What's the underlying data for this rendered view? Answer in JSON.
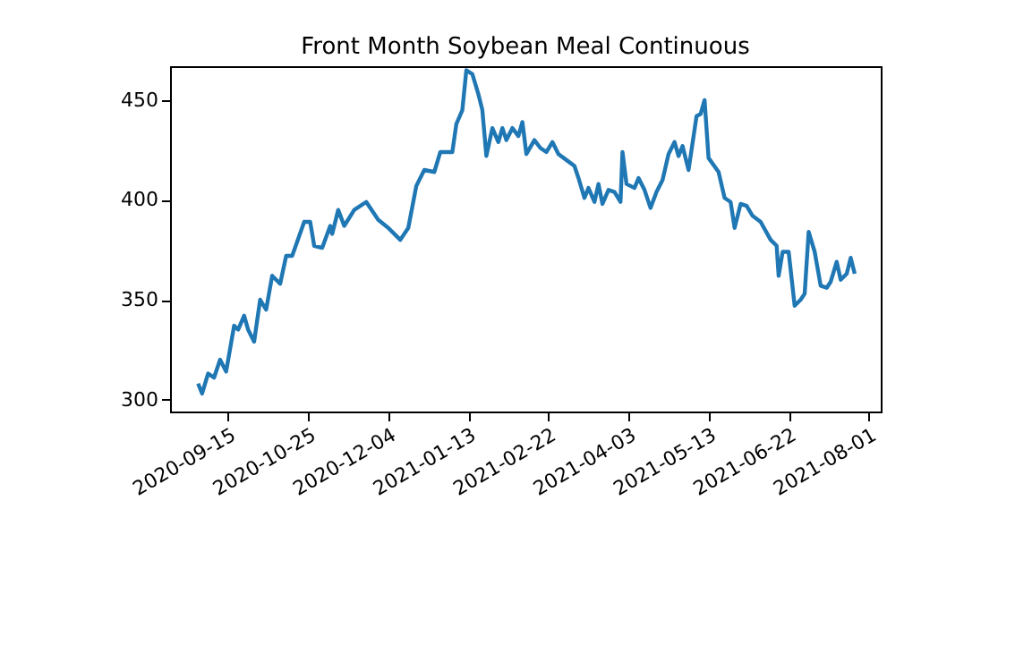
{
  "chart_data": {
    "type": "line",
    "title": "Front Month Soybean Meal Continuous",
    "x": [
      "2020-08-31",
      "2020-09-02",
      "2020-09-05",
      "2020-09-08",
      "2020-09-11",
      "2020-09-14",
      "2020-09-18",
      "2020-09-20",
      "2020-09-23",
      "2020-09-25",
      "2020-09-28",
      "2020-10-01",
      "2020-10-04",
      "2020-10-07",
      "2020-10-11",
      "2020-10-14",
      "2020-10-17",
      "2020-10-23",
      "2020-10-26",
      "2020-10-28",
      "2020-11-01",
      "2020-11-05",
      "2020-11-06",
      "2020-11-09",
      "2020-11-12",
      "2020-11-17",
      "2020-11-23",
      "2020-11-29",
      "2020-12-04",
      "2020-12-10",
      "2020-12-14",
      "2020-12-18",
      "2020-12-22",
      "2020-12-27",
      "2020-12-30",
      "2021-01-05",
      "2021-01-07",
      "2021-01-10",
      "2021-01-12",
      "2021-01-15",
      "2021-01-18",
      "2021-01-20",
      "2021-01-22",
      "2021-01-25",
      "2021-01-28",
      "2021-01-30",
      "2021-02-01",
      "2021-02-04",
      "2021-02-07",
      "2021-02-09",
      "2021-02-11",
      "2021-02-15",
      "2021-02-18",
      "2021-02-21",
      "2021-02-24",
      "2021-02-27",
      "2021-03-03",
      "2021-03-07",
      "2021-03-09",
      "2021-03-12",
      "2021-03-14",
      "2021-03-17",
      "2021-03-19",
      "2021-03-21",
      "2021-03-24",
      "2021-03-27",
      "2021-03-30",
      "2021-03-31",
      "2021-04-02",
      "2021-04-06",
      "2021-04-08",
      "2021-04-11",
      "2021-04-14",
      "2021-04-17",
      "2021-04-20",
      "2021-04-23",
      "2021-04-26",
      "2021-04-28",
      "2021-04-30",
      "2021-05-03",
      "2021-05-07",
      "2021-05-09",
      "2021-05-11",
      "2021-05-13",
      "2021-05-18",
      "2021-05-21",
      "2021-05-24",
      "2021-05-26",
      "2021-05-29",
      "2021-06-01",
      "2021-06-04",
      "2021-06-08",
      "2021-06-13",
      "2021-06-16",
      "2021-06-17",
      "2021-06-19",
      "2021-06-22",
      "2021-06-25",
      "2021-06-28",
      "2021-06-30",
      "2021-07-02",
      "2021-07-05",
      "2021-07-08",
      "2021-07-11",
      "2021-07-13",
      "2021-07-16",
      "2021-07-18",
      "2021-07-21",
      "2021-07-23",
      "2021-07-25"
    ],
    "series": [
      {
        "color": "#1f77b4",
        "values": [
          308,
          303,
          313,
          311,
          320,
          314,
          337,
          335,
          342,
          335,
          329,
          350,
          345,
          362,
          358,
          372,
          372,
          389,
          389,
          377,
          376,
          387,
          383,
          395,
          387,
          395,
          399,
          390,
          386,
          380,
          386,
          407,
          415,
          414,
          424,
          424,
          438,
          445,
          465,
          463,
          453,
          445,
          422,
          436,
          429,
          436,
          430,
          436,
          432,
          439,
          423,
          430,
          426,
          424,
          429,
          423,
          420,
          417,
          411,
          401,
          406,
          399,
          408,
          398,
          405,
          404,
          399,
          424,
          408,
          406,
          411,
          405,
          396,
          404,
          410,
          423,
          429,
          422,
          427,
          415,
          442,
          443,
          450,
          421,
          414,
          401,
          399,
          386,
          398,
          397,
          392,
          389,
          380,
          377,
          362,
          374,
          374,
          347,
          350,
          353,
          384,
          374,
          357,
          356,
          359,
          369,
          360,
          363,
          371,
          363
        ]
      }
    ],
    "xlim": [
      "2020-08-17",
      "2021-08-07"
    ],
    "ylim": [
      294,
      467
    ],
    "xticks": [
      "2020-09-15",
      "2020-10-25",
      "2020-12-04",
      "2021-01-13",
      "2021-02-22",
      "2021-04-03",
      "2021-05-13",
      "2021-06-22",
      "2021-08-01"
    ],
    "yticks": [
      300,
      350,
      400,
      450
    ],
    "grid": false,
    "marker": "none",
    "line_style": "solid"
  }
}
